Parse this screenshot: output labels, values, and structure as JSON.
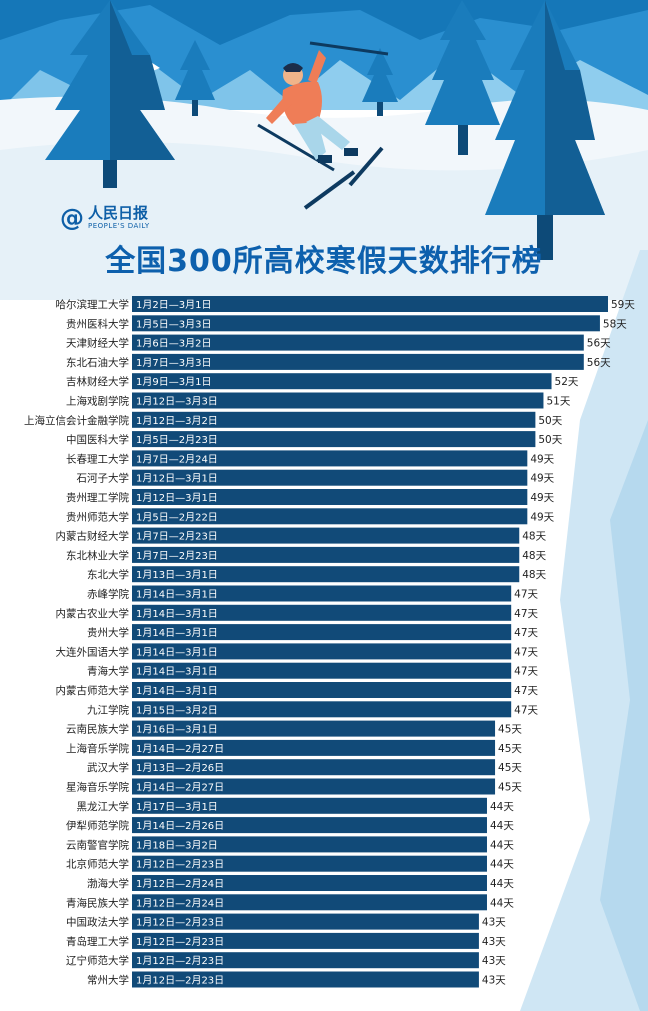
{
  "brand": {
    "cn": "人民日报",
    "en": "PEOPLE'S DAILY"
  },
  "title": "全国300所高校寒假天数排行榜",
  "colors": {
    "bar": "#114a78",
    "title": "#0d60ad",
    "sky": "#1577b8",
    "snow": "#e6f1f8"
  },
  "chart_data": {
    "type": "bar",
    "orientation": "horizontal",
    "title": "全国300所高校寒假天数排行榜",
    "value_suffix": "天",
    "categories": [
      "哈尔滨理工大学",
      "贵州医科大学",
      "天津财经大学",
      "东北石油大学",
      "吉林财经大学",
      "上海戏剧学院",
      "上海立信会计金融学院",
      "中国医科大学",
      "长春理工大学",
      "石河子大学",
      "贵州理工学院",
      "贵州师范大学",
      "内蒙古财经大学",
      "东北林业大学",
      "东北大学",
      "赤峰学院",
      "内蒙古农业大学",
      "贵州大学",
      "大连外国语大学",
      "青海大学",
      "内蒙古师范大学",
      "九江学院",
      "云南民族大学",
      "上海音乐学院",
      "武汉大学",
      "星海音乐学院",
      "黑龙江大学",
      "伊犁师范学院",
      "云南警官学院",
      "北京师范大学",
      "渤海大学",
      "青海民族大学",
      "中国政法大学",
      "青岛理工大学",
      "辽宁师范大学",
      "常州大学"
    ],
    "ranges": [
      "1月2日—3月1日",
      "1月5日—3月3日",
      "1月6日—3月2日",
      "1月7日—3月3日",
      "1月9日—3月1日",
      "1月12日—3月3日",
      "1月12日—3月2日",
      "1月5日—2月23日",
      "1月7日—2月24日",
      "1月12日—3月1日",
      "1月12日—3月1日",
      "1月5日—2月22日",
      "1月7日—2月23日",
      "1月7日—2月23日",
      "1月13日—3月1日",
      "1月14日—3月1日",
      "1月14日—3月1日",
      "1月14日—3月1日",
      "1月14日—3月1日",
      "1月14日—3月1日",
      "1月14日—3月1日",
      "1月15日—3月2日",
      "1月16日—3月1日",
      "1月14日—2月27日",
      "1月13日—2月26日",
      "1月14日—2月27日",
      "1月17日—3月1日",
      "1月14日—2月26日",
      "1月18日—3月2日",
      "1月12日—2月23日",
      "1月12日—2月24日",
      "1月12日—2月24日",
      "1月12日—2月23日",
      "1月12日—2月23日",
      "1月12日—2月23日",
      "1月12日—2月23日"
    ],
    "values": [
      59,
      58,
      56,
      56,
      52,
      51,
      50,
      50,
      49,
      49,
      49,
      49,
      48,
      48,
      48,
      47,
      47,
      47,
      47,
      47,
      47,
      47,
      45,
      45,
      45,
      45,
      44,
      44,
      44,
      44,
      44,
      44,
      43,
      43,
      43,
      43
    ],
    "value_labels": [
      "59天",
      "58天",
      "56天",
      "56天",
      "52天",
      "51天",
      "50天",
      "50天",
      "49天",
      "49天",
      "49天",
      "49天",
      "48天",
      "48天",
      "48天",
      "47天",
      "47天",
      "47天",
      "47天",
      "47天",
      "47天",
      "47天",
      "45天",
      "45天",
      "45天",
      "45天",
      "44天",
      "44天",
      "44天",
      "44天",
      "44天",
      "44天",
      "43天",
      "43天",
      "43天",
      "43天"
    ],
    "xlim": [
      0,
      59
    ],
    "grid": false,
    "legend": "none"
  }
}
